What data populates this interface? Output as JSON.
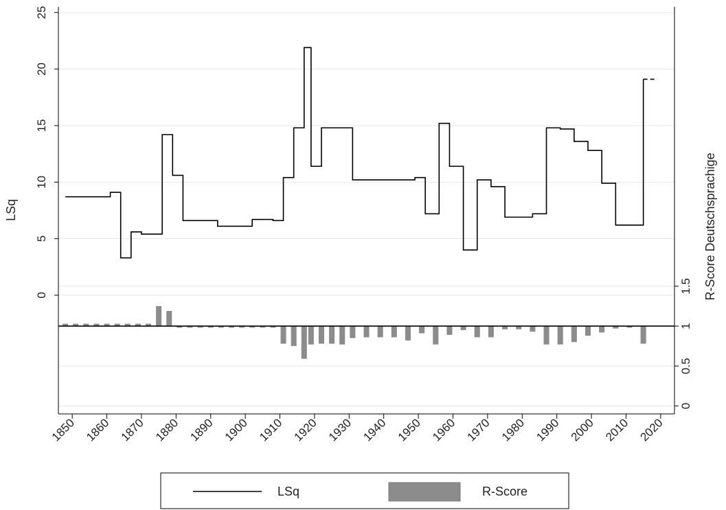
{
  "chart_data": {
    "type": "line",
    "x_ticks": [
      1850,
      1860,
      1870,
      1880,
      1890,
      1900,
      1910,
      1920,
      1930,
      1940,
      1950,
      1960,
      1970,
      1980,
      1990,
      2000,
      2010,
      2020
    ],
    "xlim": [
      1846,
      2024
    ],
    "left_axis": {
      "label": "LSq",
      "ticks": [
        0,
        5,
        10,
        15,
        20,
        25
      ],
      "ylim": [
        -10.5,
        25.5
      ]
    },
    "right_axis": {
      "label": "R-Score Deutschsprachige",
      "ticks": [
        "0",
        "0.5",
        "1",
        "1.5"
      ],
      "tick_values": [
        0,
        0.5,
        1,
        1.5
      ],
      "ylim": [
        -0.1,
        5
      ]
    },
    "series": [
      {
        "name": "LSq",
        "type": "step",
        "color": "#000000",
        "points": [
          [
            1848,
            8.7
          ],
          [
            1861,
            9.1
          ],
          [
            1864,
            3.3
          ],
          [
            1867,
            5.6
          ],
          [
            1870,
            5.4
          ],
          [
            1876,
            14.2
          ],
          [
            1879,
            10.6
          ],
          [
            1882,
            6.6
          ],
          [
            1885,
            6.6
          ],
          [
            1892,
            6.1
          ],
          [
            1902,
            6.7
          ],
          [
            1908,
            6.6
          ],
          [
            1911,
            10.4
          ],
          [
            1914,
            14.8
          ],
          [
            1917,
            21.9
          ],
          [
            1919,
            11.4
          ],
          [
            1922,
            14.8
          ],
          [
            1925,
            14.8
          ],
          [
            1931,
            10.2
          ],
          [
            1934,
            10.2
          ],
          [
            1949,
            10.4
          ],
          [
            1952,
            7.2
          ],
          [
            1956,
            15.2
          ],
          [
            1959,
            11.4
          ],
          [
            1963,
            4.0
          ],
          [
            1967,
            10.2
          ],
          [
            1971,
            9.6
          ],
          [
            1975,
            6.9
          ],
          [
            1983,
            7.2
          ],
          [
            1987,
            14.8
          ],
          [
            1991,
            14.7
          ],
          [
            1995,
            13.6
          ],
          [
            1999,
            12.8
          ],
          [
            2003,
            9.9
          ],
          [
            2007,
            6.2
          ],
          [
            2015,
            19.1
          ],
          [
            2018,
            19.1
          ]
        ],
        "end_x": 2015,
        "dashed_tail": [
          2015,
          2019
        ]
      },
      {
        "name": "R-Score",
        "type": "bar",
        "color": "#8c8c8c",
        "baseline": 1,
        "bar_width_years": 1.6,
        "x": [
          1848,
          1851,
          1854,
          1857,
          1860,
          1863,
          1866,
          1869,
          1872,
          1875,
          1878,
          1881,
          1884,
          1887,
          1890,
          1893,
          1896,
          1899,
          1902,
          1905,
          1908,
          1911,
          1914,
          1917,
          1919,
          1922,
          1925,
          1928,
          1931,
          1935,
          1939,
          1943,
          1947,
          1951,
          1955,
          1959,
          1963,
          1967,
          1971,
          1975,
          1979,
          1983,
          1987,
          1991,
          1995,
          1999,
          2003,
          2007,
          2011,
          2015
        ],
        "values": [
          1.03,
          1.03,
          1.03,
          1.03,
          1.03,
          1.03,
          1.03,
          1.03,
          1.03,
          1.25,
          1.19,
          0.98,
          0.98,
          0.98,
          0.98,
          0.98,
          0.98,
          0.98,
          0.98,
          0.98,
          0.98,
          0.78,
          0.75,
          0.59,
          0.77,
          0.78,
          0.78,
          0.77,
          0.85,
          0.86,
          0.86,
          0.86,
          0.82,
          0.91,
          0.77,
          0.89,
          0.95,
          0.86,
          0.86,
          0.96,
          0.96,
          0.93,
          0.77,
          0.77,
          0.8,
          0.88,
          0.92,
          0.97,
          0.98,
          0.78
        ]
      }
    ],
    "grid": true,
    "legend_position": "bottom",
    "legend": [
      {
        "label": "LSq",
        "kind": "line"
      },
      {
        "label": "R-Score",
        "kind": "bar"
      }
    ]
  }
}
